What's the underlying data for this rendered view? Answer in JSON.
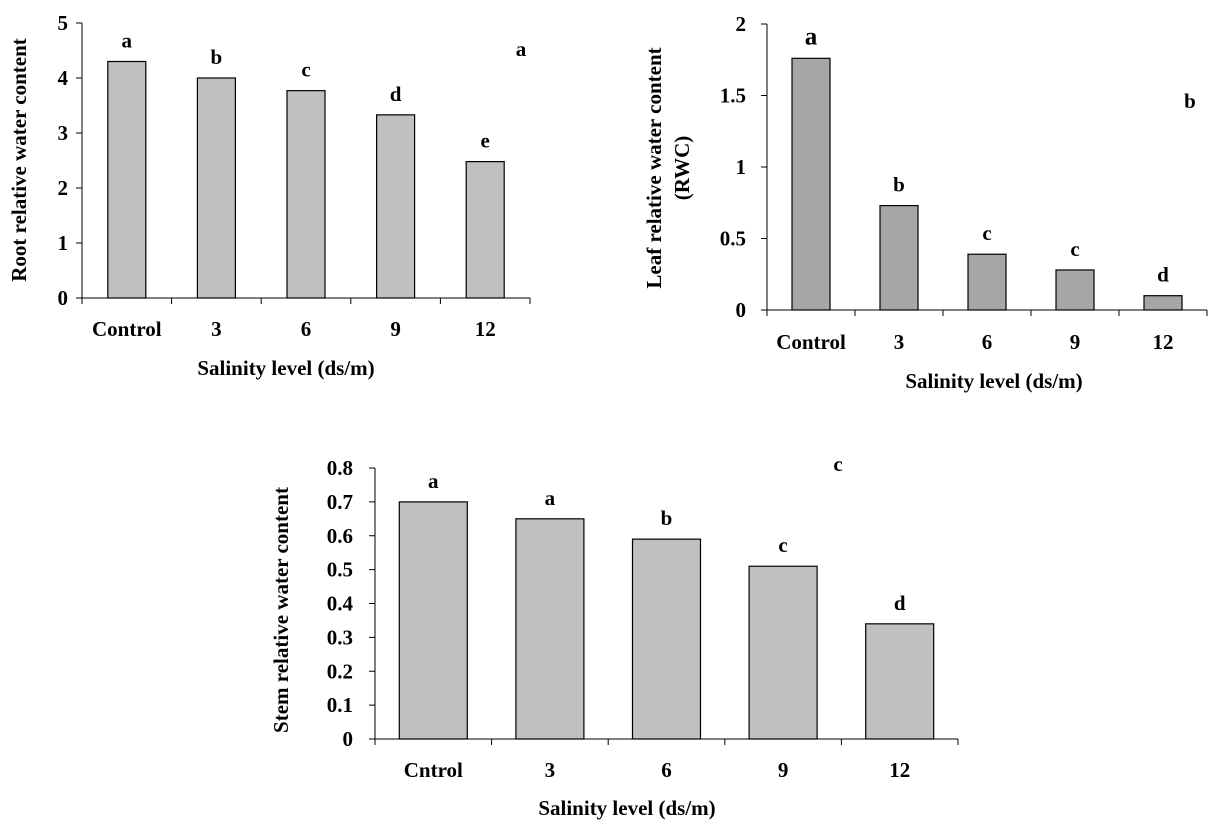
{
  "chart_data": [
    {
      "type": "bar",
      "panel_label": "a",
      "categories": [
        "Control",
        "3",
        "6",
        "9",
        "12"
      ],
      "values": [
        4.3,
        4.0,
        3.77,
        3.33,
        2.48
      ],
      "letters": [
        "a",
        "b",
        "c",
        "d",
        "e"
      ],
      "ylabel": "Root relative water content",
      "xlabel": "Salinity level (ds/m)",
      "ylim": [
        0,
        5
      ],
      "yticks": [
        "0",
        "1",
        "2",
        "3",
        "4",
        "5"
      ],
      "bar_color": "#c0c0c0",
      "grid": false
    },
    {
      "type": "bar",
      "panel_label": "b",
      "categories": [
        "Control",
        "3",
        "6",
        "9",
        "12"
      ],
      "values": [
        1.76,
        0.73,
        0.39,
        0.28,
        0.1
      ],
      "letters": [
        "a",
        "b",
        "c",
        "c",
        "d"
      ],
      "ylabel": "Leaf relative water content",
      "ylabel_line2": "(RWC)",
      "xlabel": "Salinity level (ds/m)",
      "ylim": [
        0,
        2
      ],
      "yticks": [
        "0",
        "0.5",
        "1",
        "1.5",
        "2"
      ],
      "bar_color": "#a6a6a6",
      "grid": false
    },
    {
      "type": "bar",
      "panel_label": "c",
      "categories": [
        "Cntrol",
        "3",
        "6",
        "9",
        "12"
      ],
      "values": [
        0.7,
        0.65,
        0.59,
        0.51,
        0.34
      ],
      "letters": [
        "a",
        "a",
        "b",
        "c",
        "d"
      ],
      "ylabel": "Stem relative water content",
      "xlabel": "Salinity level (ds/m)",
      "ylim": [
        0,
        0.8
      ],
      "yticks": [
        "0",
        "0.1",
        "0.2",
        "0.3",
        "0.4",
        "0.5",
        "0.6",
        "0.7",
        "0.8"
      ],
      "bar_color": "#c0c0c0",
      "grid": false
    }
  ]
}
